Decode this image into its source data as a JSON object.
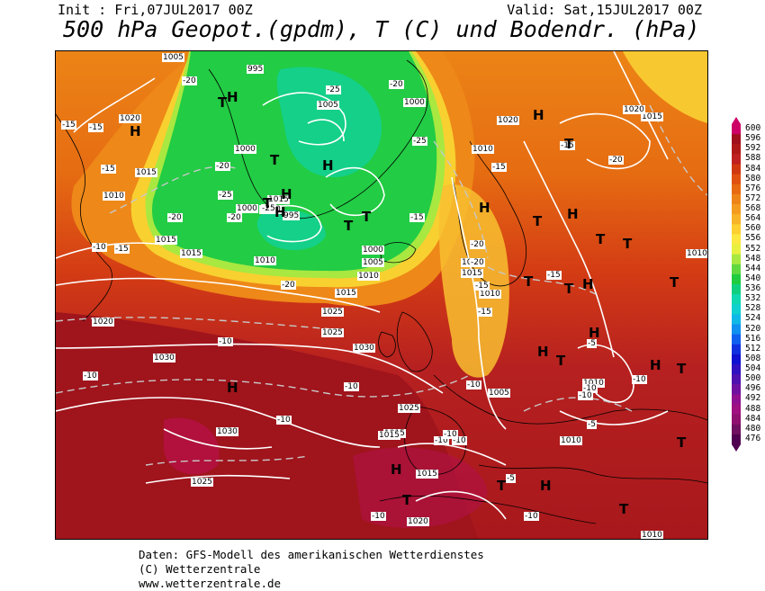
{
  "header": {
    "init": "Init : Fri,07JUL2017 00Z",
    "valid": "Valid: Sat,15JUL2017 00Z",
    "title": "500 hPa Geopot.(gpdm), T (C) und Bodendr. (hPa)"
  },
  "footer": {
    "line1": "Daten: GFS-Modell des amerikanischen Wetterdienstes",
    "line2": "(C) Wetterzentrale",
    "line3": "www.wetterzentrale.de"
  },
  "legend": {
    "levels": [
      "600",
      "596",
      "592",
      "588",
      "584",
      "580",
      "576",
      "572",
      "568",
      "564",
      "560",
      "556",
      "552",
      "548",
      "544",
      "540",
      "536",
      "532",
      "528",
      "524",
      "520",
      "516",
      "512",
      "508",
      "504",
      "500",
      "496",
      "492",
      "488",
      "484",
      "480",
      "476"
    ],
    "colors": [
      "#cc0066",
      "#a0101c",
      "#b01818",
      "#c02020",
      "#d03810",
      "#e05010",
      "#e86a10",
      "#ee8418",
      "#f49c20",
      "#f8b428",
      "#fcd030",
      "#fce840",
      "#e8f040",
      "#a8e840",
      "#60d840",
      "#20cc40",
      "#10d080",
      "#10d8b0",
      "#10d0d0",
      "#10b8e8",
      "#1090f0",
      "#1060f0",
      "#1030e0",
      "#1010d0",
      "#3010c0",
      "#5010b0",
      "#7010a0",
      "#901090",
      "#a01080",
      "#901070",
      "#701060",
      "#500050"
    ]
  },
  "map": {
    "pressure_labels": [
      "1005",
      "995",
      "1000",
      "1005",
      "1000",
      "1015",
      "1020",
      "1015",
      "1010",
      "1015",
      "1010",
      "1015",
      "1020",
      "1000",
      "995",
      "1000",
      "1000",
      "1005",
      "1010",
      "1015",
      "1025",
      "1020",
      "1025",
      "1030",
      "1030",
      "1010",
      "1015",
      "1020",
      "1025",
      "1015",
      "1030",
      "1025",
      "1015",
      "1010",
      "1010",
      "1010",
      "1005",
      "1010",
      "1015",
      "1020",
      "1010",
      "1010",
      "1015"
    ],
    "temp_labels": [
      "-20",
      "-25",
      "-20",
      "-15",
      "-15",
      "-25",
      "-20",
      "-15",
      "-20",
      "-15",
      "-25",
      "-20",
      "-25",
      "-20",
      "-15",
      "-10",
      "-15",
      "-20",
      "-20",
      "-15",
      "-10",
      "-10",
      "-10",
      "-10",
      "-10",
      "-10",
      "-5",
      "-10",
      "-10",
      "-5",
      "-5",
      "-15",
      "-10",
      "-10",
      "-15",
      "-20",
      "-15",
      "-10",
      "-10",
      "-10"
    ],
    "high_low": [
      "H",
      "T",
      "H",
      "T",
      "H",
      "T",
      "H",
      "T",
      "H",
      "T",
      "H",
      "T",
      "H",
      "T",
      "H",
      "T",
      "T",
      "H",
      "T",
      "H",
      "T",
      "H",
      "T",
      "H",
      "T",
      "H",
      "T",
      "H",
      "T",
      "T",
      "H",
      "T",
      "T"
    ]
  }
}
